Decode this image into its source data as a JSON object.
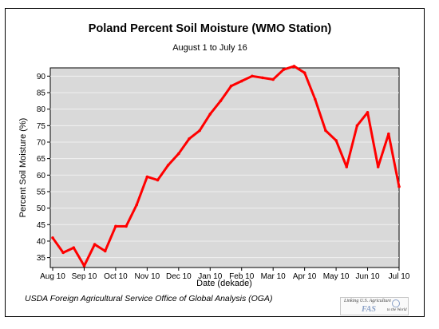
{
  "chart_data": {
    "type": "line",
    "title": "Poland Percent Soil Moisture (WMO Station)",
    "subtitle": "August 1 to July 16",
    "xlabel": "Date (dekade)",
    "ylabel": "Percent Soil Moisture (%)",
    "ylim": [
      32,
      92.5
    ],
    "yticks": [
      35,
      40,
      45,
      50,
      55,
      60,
      65,
      70,
      75,
      80,
      85,
      90
    ],
    "xticks": [
      {
        "label": "Aug 10",
        "index": 0
      },
      {
        "label": "Sep 10",
        "index": 3
      },
      {
        "label": "Oct 10",
        "index": 6
      },
      {
        "label": "Nov 10",
        "index": 9
      },
      {
        "label": "Dec 10",
        "index": 12
      },
      {
        "label": "Jan 10",
        "index": 15
      },
      {
        "label": "Feb 10",
        "index": 18
      },
      {
        "label": "Mar 10",
        "index": 21
      },
      {
        "label": "Apr 10",
        "index": 24
      },
      {
        "label": "May 10",
        "index": 27
      },
      {
        "label": "Jun 10",
        "index": 30
      },
      {
        "label": "Jul 10",
        "index": 33
      }
    ],
    "grid": true,
    "series": [
      {
        "color": "#ff0000",
        "values": [
          41,
          36.5,
          38,
          32.5,
          39,
          37,
          44.5,
          44.5,
          51,
          59.5,
          58.5,
          63,
          66.5,
          71,
          73.5,
          78.5,
          82.5,
          87,
          88.5,
          90,
          89.5,
          89,
          92,
          93,
          91,
          83,
          73.5,
          70.5,
          62.5,
          75,
          79,
          62.5,
          72.5,
          56.5
        ]
      }
    ]
  },
  "footer": {
    "source": "USDA Foreign Agricultural Service Office of Global Analysis (OGA)"
  },
  "logo": {
    "line1": "Linking U.S. Agriculture",
    "line2": "FAS",
    "line3": "to the World"
  },
  "colors": {
    "plot_background": "#d9d9d9",
    "gridline": "#f0f0f0",
    "series": "#ff0000"
  }
}
